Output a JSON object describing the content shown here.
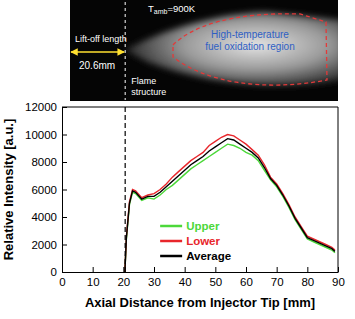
{
  "chart_data": {
    "type": "line",
    "x": [
      20.5,
      21,
      22,
      23,
      24,
      26,
      28,
      30,
      32,
      34,
      36,
      38,
      40,
      42,
      44,
      46,
      48,
      50,
      52,
      54,
      56,
      58,
      60,
      62,
      64,
      66,
      68,
      70,
      72,
      74,
      76,
      78,
      80,
      82,
      84,
      86,
      88,
      89
    ],
    "series": [
      {
        "name": "Upper",
        "color": "#4cd83a",
        "values": [
          0,
          2400,
          4900,
          5800,
          5700,
          5200,
          5400,
          5300,
          5600,
          6000,
          6300,
          6700,
          7100,
          7500,
          7800,
          8100,
          8400,
          8700,
          9000,
          9300,
          9200,
          9000,
          8700,
          8500,
          8100,
          7400,
          6700,
          6200,
          5500,
          4700,
          3800,
          3100,
          2400,
          2200,
          2000,
          1800,
          1600,
          1400
        ]
      },
      {
        "name": "Lower",
        "color": "#e8262b",
        "values": [
          0,
          2600,
          5100,
          6000,
          5900,
          5400,
          5600,
          5700,
          6000,
          6400,
          6900,
          7300,
          7700,
          8100,
          8400,
          8700,
          9200,
          9500,
          9800,
          10000,
          9900,
          9600,
          9300,
          8900,
          8500,
          7800,
          6900,
          6400,
          5700,
          4900,
          4000,
          3300,
          2600,
          2400,
          2200,
          2000,
          1800,
          1600
        ]
      },
      {
        "name": "Average",
        "color": "#000000",
        "values": [
          0,
          2500,
          5000,
          5900,
          5800,
          5300,
          5500,
          5500,
          5800,
          6200,
          6600,
          7000,
          7400,
          7800,
          8100,
          8400,
          8800,
          9100,
          9400,
          9700,
          9600,
          9300,
          9000,
          8700,
          8300,
          7600,
          6800,
          6300,
          5600,
          4800,
          3900,
          3200,
          2500,
          2300,
          2100,
          1900,
          1700,
          1500
        ]
      }
    ],
    "xlim": [
      0,
      90
    ],
    "ylim": [
      0,
      12000
    ],
    "xticks": [
      0,
      10,
      20,
      30,
      40,
      50,
      60,
      70,
      80,
      90
    ],
    "yticks": [
      0,
      2000,
      4000,
      6000,
      8000,
      10000,
      12000
    ],
    "x_label": "Axial Distance from Injector Tip [mm]",
    "y_label": "Relative Intensity [a.u.]",
    "legend": "bottom",
    "grid": false,
    "lift_off_length": {
      "value": 20.6,
      "label": "20.6mm"
    },
    "image_annotations": {
      "lift_off": "Lift-off length",
      "temperature": {
        "symbol": "T",
        "subscript": "amb",
        "text": "=900K"
      },
      "flame_structure": [
        "Flame",
        "structure"
      ],
      "oxidation_region": [
        "High-temperature",
        "fuel oxidation region"
      ]
    }
  }
}
